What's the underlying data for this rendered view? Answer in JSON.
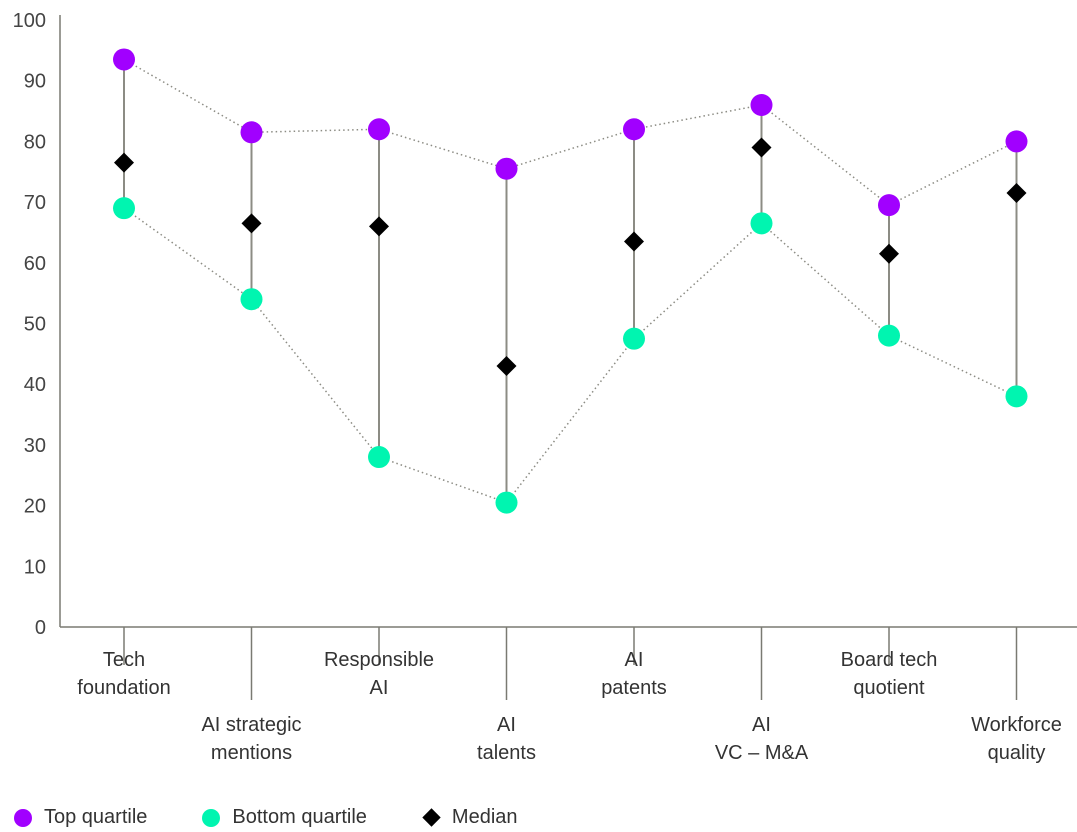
{
  "chart_data": {
    "type": "scatter",
    "title": "",
    "xlabel": "",
    "ylabel": "",
    "ylim": [
      0,
      100
    ],
    "yticks": [
      0,
      10,
      20,
      30,
      40,
      50,
      60,
      70,
      80,
      90,
      100
    ],
    "grid": false,
    "legend_position": "bottom-left",
    "categories": [
      [
        "Tech",
        "foundation"
      ],
      [
        "AI strategic",
        "mentions"
      ],
      [
        "Responsible",
        "AI"
      ],
      [
        "AI",
        "talents"
      ],
      [
        "AI",
        "patents"
      ],
      [
        "AI",
        "VC – M&A"
      ],
      [
        "Board tech",
        "quotient"
      ],
      [
        "Workforce",
        "quality"
      ]
    ],
    "series": [
      {
        "name": "Top quartile",
        "marker": "circle",
        "color": "#a100ff",
        "values": [
          93.5,
          81.5,
          82,
          75.5,
          82,
          86,
          69.5,
          80
        ]
      },
      {
        "name": "Bottom quartile",
        "marker": "circle",
        "color": "#00f5b0",
        "values": [
          69,
          54,
          28,
          20.5,
          47.5,
          66.5,
          48,
          38
        ]
      },
      {
        "name": "Median",
        "marker": "diamond",
        "color": "#000000",
        "values": [
          76.5,
          66.5,
          66,
          43,
          63.5,
          79,
          61.5,
          71.5
        ]
      }
    ]
  },
  "colors": {
    "axis": "#7a7a72",
    "range_line": "#8c8c84",
    "dotted_line": "#8c8c84"
  }
}
